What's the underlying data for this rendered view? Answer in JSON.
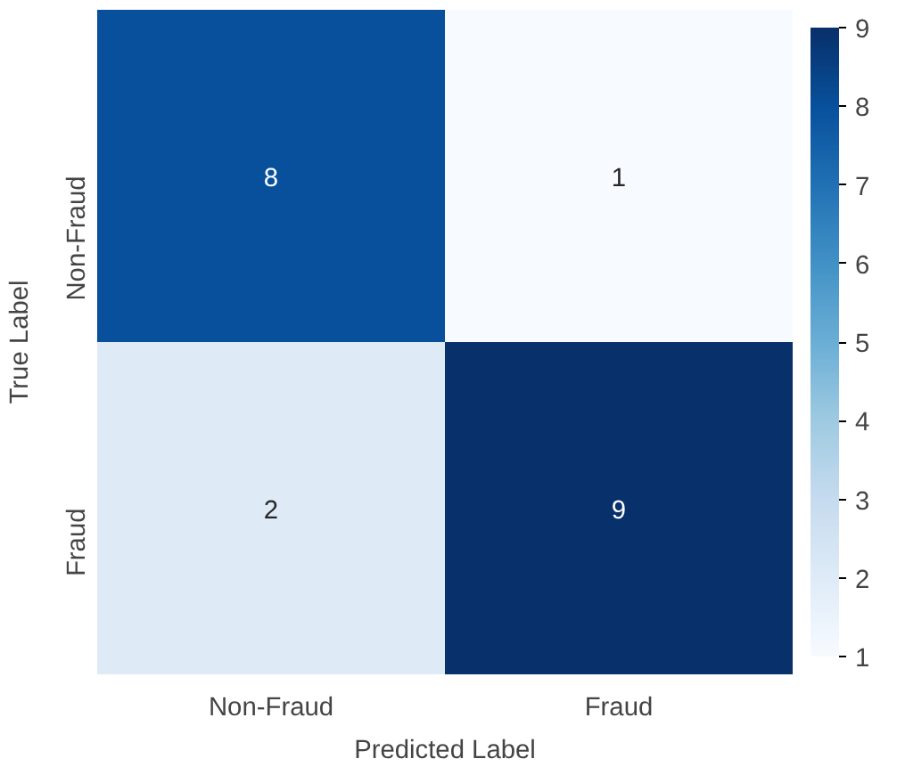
{
  "chart_data": {
    "type": "heatmap",
    "xlabel": "Predicted Label",
    "ylabel": "True Label",
    "categories": [
      "Non-Fraud",
      "Fraud"
    ],
    "y_categories": [
      "Non-Fraud",
      "Fraud"
    ],
    "cells": [
      [
        8,
        1
      ],
      [
        2,
        9
      ]
    ],
    "data_labels": true,
    "clim": [
      1,
      9
    ],
    "cticks": [
      1,
      2,
      3,
      4,
      5,
      6,
      7,
      8,
      9
    ]
  }
}
